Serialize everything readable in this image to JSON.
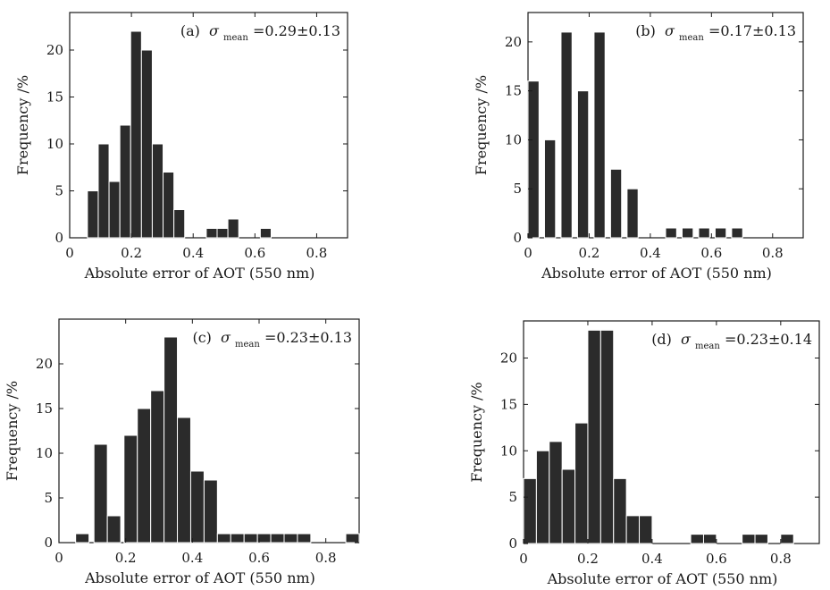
{
  "chart_data": [
    {
      "type": "bar",
      "panel": "(a)",
      "annotation": {
        "label": "(a)",
        "symbol": "σ",
        "subscript": "mean",
        "value": "=0.29±0.13"
      },
      "xlabel": "Absolute error of AOT (550 nm)",
      "ylabel": "Frequency /%",
      "xlim": [
        0,
        0.9
      ],
      "ylim": [
        0,
        24
      ],
      "xticks": [
        "0",
        "0.2",
        "0.4",
        "0.6",
        "0.8"
      ],
      "yticks": [
        "0",
        "5",
        "10",
        "15",
        "20"
      ],
      "bin_width": 0.035,
      "x": [
        0.075,
        0.11,
        0.145,
        0.18,
        0.215,
        0.25,
        0.285,
        0.32,
        0.355,
        0.39,
        0.425,
        0.46,
        0.495,
        0.53,
        0.565,
        0.6,
        0.635,
        0.67,
        0.705,
        0.74,
        0.775,
        0.81,
        0.845
      ],
      "values": [
        5,
        10,
        6,
        12,
        22,
        20,
        10,
        7,
        3,
        0,
        0,
        1,
        1,
        2,
        0,
        0,
        1,
        0,
        0,
        0,
        0,
        0,
        0
      ]
    },
    {
      "type": "bar",
      "panel": "(b)",
      "annotation": {
        "label": "(b)",
        "symbol": "σ",
        "subscript": "mean",
        "value": "=0.17±0.13"
      },
      "xlabel": "Absolute error of AOT (550 nm)",
      "ylabel": "Frequency /%",
      "xlim": [
        0,
        0.9
      ],
      "ylim": [
        0,
        23
      ],
      "xticks": [
        "0",
        "0.2",
        "0.4",
        "0.6",
        "0.8"
      ],
      "yticks": [
        "0",
        "5",
        "10",
        "15",
        "20"
      ],
      "bin_width": 0.036,
      "x": [
        0.018,
        0.072,
        0.126,
        0.18,
        0.234,
        0.288,
        0.342,
        0.414,
        0.468,
        0.522,
        0.576,
        0.63,
        0.684
      ],
      "values": [
        16,
        10,
        21,
        15,
        21,
        7,
        5,
        0,
        1,
        1,
        1,
        1,
        1
      ]
    },
    {
      "type": "bar",
      "panel": "(c)",
      "annotation": {
        "label": "(c)",
        "symbol": "σ",
        "subscript": "mean",
        "value": "=0.23±0.13"
      },
      "xlabel": "Absolute error of AOT (550 nm)",
      "ylabel": "Frequency /%",
      "xlim": [
        0,
        0.9
      ],
      "ylim": [
        0,
        25
      ],
      "xticks": [
        "0",
        "0.2",
        "0.4",
        "0.6",
        "0.8"
      ],
      "yticks": [
        "0",
        "5",
        "10",
        "15",
        "20"
      ],
      "bin_width": 0.04,
      "x": [
        0.07,
        0.125,
        0.165,
        0.215,
        0.255,
        0.295,
        0.335,
        0.375,
        0.415,
        0.455,
        0.495,
        0.535,
        0.575,
        0.615,
        0.655,
        0.695,
        0.735,
        0.88
      ],
      "values": [
        1,
        11,
        3,
        12,
        15,
        17,
        23,
        14,
        8,
        7,
        1,
        1,
        1,
        1,
        1,
        1,
        1,
        1
      ]
    },
    {
      "type": "bar",
      "panel": "(d)",
      "annotation": {
        "label": "(d)",
        "symbol": "σ",
        "subscript": "mean",
        "value": "=0.23±0.14"
      },
      "xlabel": "Absolute error of AOT (550 nm)",
      "ylabel": "Frequency /%",
      "xlim": [
        0,
        0.92
      ],
      "ylim": [
        0,
        24
      ],
      "xticks": [
        "0",
        "0.2",
        "0.4",
        "0.6",
        "0.8"
      ],
      "yticks": [
        "0",
        "5",
        "10",
        "15",
        "20"
      ],
      "bin_width": 0.04,
      "x": [
        0.02,
        0.06,
        0.1,
        0.14,
        0.18,
        0.22,
        0.26,
        0.3,
        0.34,
        0.38,
        0.42,
        0.54,
        0.58,
        0.7,
        0.74,
        0.82
      ],
      "values": [
        7,
        10,
        11,
        8,
        13,
        23,
        23,
        7,
        3,
        3,
        0,
        1,
        1,
        1,
        1,
        1
      ]
    }
  ]
}
